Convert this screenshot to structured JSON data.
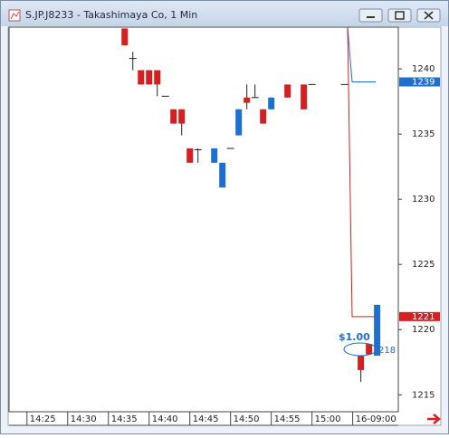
{
  "chart_data": {
    "type": "candlestick",
    "title": "S.JP.J8233 - Takashimaya Co, 1 Min",
    "x": [
      12,
      13,
      14,
      15,
      16,
      17,
      18,
      19,
      20,
      21,
      23,
      24,
      25,
      26,
      27,
      28,
      29,
      30,
      32,
      34,
      35,
      39,
      41,
      42,
      43
    ],
    "open": [
      1243.1,
      1240.8,
      1239.9,
      1239.9,
      1239.9,
      1237.9,
      1236.9,
      1236.9,
      1233.9,
      1233.8,
      1232.8,
      1230.9,
      1233.9,
      1234.9,
      1237.8,
      1237.8,
      1236.9,
      1236.9,
      1238.8,
      1238.8,
      1238.8,
      1238.8,
      1218.0,
      1218.9,
      1218.0
    ],
    "high": [
      1243.1,
      1241.3,
      1239.9,
      1239.9,
      1239.9,
      1237.9,
      1236.9,
      1236.9,
      1233.9,
      1233.9,
      1233.9,
      1232.8,
      1233.9,
      1236.9,
      1238.8,
      1238.8,
      1236.9,
      1237.8,
      1238.8,
      1238.8,
      1238.8,
      1238.8,
      1218.0,
      1218.9,
      1221.9
    ],
    "low": [
      1241.8,
      1239.9,
      1238.8,
      1238.8,
      1237.9,
      1237.9,
      1235.8,
      1234.9,
      1232.8,
      1232.8,
      1232.8,
      1230.9,
      1233.9,
      1234.9,
      1236.9,
      1237.8,
      1235.8,
      1236.9,
      1237.8,
      1236.9,
      1238.8,
      1238.8,
      1216.0,
      1218.1,
      1218.0
    ],
    "close": [
      1241.8,
      1240.8,
      1238.8,
      1238.8,
      1238.8,
      1237.9,
      1235.8,
      1235.8,
      1232.8,
      1233.8,
      1233.9,
      1232.8,
      1233.9,
      1236.9,
      1237.4,
      1237.8,
      1235.8,
      1237.8,
      1237.8,
      1236.9,
      1238.8,
      1238.8,
      1216.9,
      1218.1,
      1221.9
    ],
    "up_color": "#1f6fd1",
    "down_color": "#d42020",
    "xlim": [
      -2.2,
      45.6
    ],
    "xticks": [
      {
        "value": 0,
        "label": "14:25"
      },
      {
        "value": 5,
        "label": "14:30"
      },
      {
        "value": 10,
        "label": "14:35"
      },
      {
        "value": 15,
        "label": "14:40"
      },
      {
        "value": 20,
        "label": "14:45"
      },
      {
        "value": 25,
        "label": "14:50"
      },
      {
        "value": 30,
        "label": "14:55"
      },
      {
        "value": 35,
        "label": "15:00"
      },
      {
        "value": 40,
        "label": "16-09:00"
      }
    ],
    "ylim": [
      1213.7,
      1243.2
    ],
    "yticks": [
      1215,
      1220,
      1225,
      1230,
      1235,
      1240
    ],
    "price_lines": [
      {
        "value": 1239,
        "color": "#1f6fd1"
      },
      {
        "value": 1221,
        "color": "#d42020"
      }
    ],
    "annotations": [
      "$1.00",
      "218"
    ]
  }
}
